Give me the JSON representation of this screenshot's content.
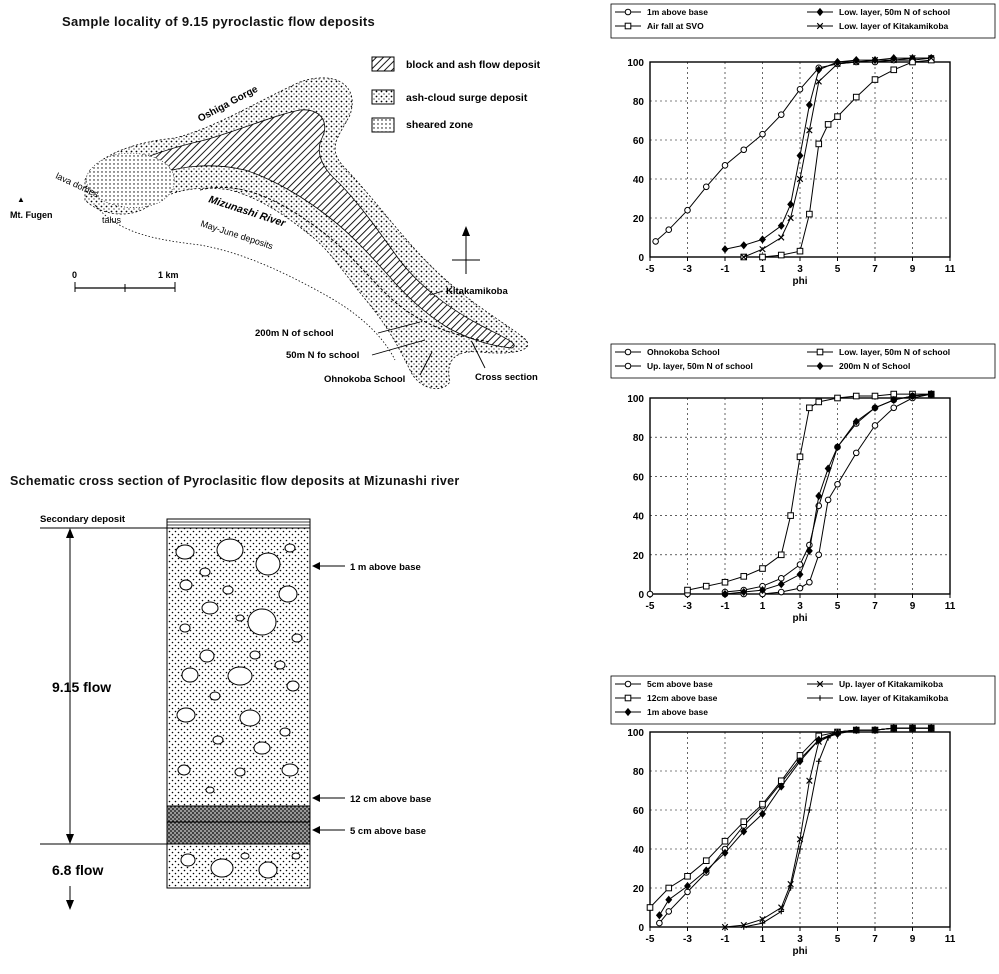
{
  "map": {
    "title": "Sample locality of  9.15 pyroclastic flow deposits",
    "legend": [
      {
        "label": "block and ash flow deposit",
        "pattern": "hatch"
      },
      {
        "label": "ash-cloud surge deposit",
        "pattern": "dots"
      },
      {
        "label": "sheared zone",
        "pattern": "fine-dots"
      }
    ],
    "labels": {
      "gorge": "Oshiga Gorge",
      "lava_domes": "lava domes",
      "talus": "talus",
      "fugen": "Mt. Fugen",
      "river": "Mizunashi River",
      "may_june": "May-June deposits",
      "kitakamikoba": "Kitakamikoba",
      "n200": "200m N of school",
      "n50": "50m N fo school",
      "ohnokoba": "Ohnokoba School",
      "cross_section": "Cross section"
    },
    "scale": {
      "zero": "0",
      "km": "1 km"
    }
  },
  "section": {
    "title": "Schematic cross section of Pyroclasitic flow deposits at Mizunashi river",
    "secondary": "Secondary deposit",
    "flow_915": "9.15 flow",
    "flow_68": "6.8 flow",
    "m1": "1 m above base",
    "cm12": "12 cm above base",
    "cm5": "5 cm above base"
  },
  "chart_data": [
    {
      "type": "line",
      "xlabel": "phi",
      "ylabel": "",
      "xlim": [
        -5,
        11
      ],
      "ylim": [
        0,
        100
      ],
      "xticks": [
        -5,
        -3,
        -1,
        1,
        3,
        5,
        7,
        9,
        11
      ],
      "yticks": [
        0,
        20,
        40,
        60,
        80,
        100
      ],
      "series": [
        {
          "name": "1m above base",
          "marker": "circle",
          "x": [
            -4.7,
            -4,
            -3,
            -2,
            -1,
            0,
            1,
            2,
            3,
            4,
            5,
            6,
            7,
            8,
            9,
            10
          ],
          "y": [
            8,
            14,
            24,
            36,
            47,
            55,
            63,
            73,
            86,
            97,
            99,
            100,
            100,
            101,
            101,
            102
          ]
        },
        {
          "name": "Low. layer, 50m N of school",
          "marker": "diamond",
          "x": [
            -1,
            0,
            1,
            2,
            2.5,
            3,
            3.5,
            4,
            5,
            6,
            7,
            8,
            9,
            10
          ],
          "y": [
            4,
            6,
            9,
            16,
            27,
            52,
            78,
            96,
            100,
            101,
            101,
            102,
            102,
            102
          ]
        },
        {
          "name": "Air fall at SVO",
          "marker": "square",
          "x": [
            0,
            1,
            2,
            3,
            3.5,
            4,
            4.5,
            5,
            6,
            7,
            8,
            9,
            10
          ],
          "y": [
            0,
            0,
            1,
            3,
            22,
            58,
            68,
            72,
            82,
            91,
            96,
            100,
            101
          ]
        },
        {
          "name": "Low. layer of Kitakamikoba",
          "marker": "x",
          "x": [
            0,
            1,
            2,
            2.5,
            3,
            3.5,
            4,
            5,
            6,
            7,
            8,
            9,
            10
          ],
          "y": [
            0,
            4,
            10,
            20,
            40,
            65,
            90,
            99,
            100,
            101,
            101,
            102,
            102
          ]
        }
      ]
    },
    {
      "type": "line",
      "xlabel": "phi",
      "ylabel": "",
      "xlim": [
        -5,
        11
      ],
      "ylim": [
        0,
        100
      ],
      "xticks": [
        -5,
        -3,
        -1,
        1,
        3,
        5,
        7,
        9,
        11
      ],
      "yticks": [
        0,
        20,
        40,
        60,
        80,
        100
      ],
      "series": [
        {
          "name": "Ohnokoba School",
          "marker": "circle",
          "x": [
            -5,
            -3,
            -1,
            0,
            1,
            2,
            3,
            3.5,
            4,
            4.5,
            5,
            6,
            7,
            8,
            9,
            10
          ],
          "y": [
            0,
            0,
            0,
            0,
            0,
            1,
            3,
            6,
            20,
            48,
            56,
            72,
            86,
            95,
            100,
            102
          ]
        },
        {
          "name": "Low. layer, 50m N of school",
          "marker": "square",
          "x": [
            -3,
            -2,
            -1,
            0,
            1,
            2,
            2.5,
            3,
            3.5,
            4,
            5,
            6,
            7,
            8,
            9,
            10
          ],
          "y": [
            2,
            4,
            6,
            9,
            13,
            20,
            40,
            70,
            95,
            98,
            100,
            101,
            101,
            102,
            102,
            102
          ]
        },
        {
          "name": "Up. layer, 50m N of school",
          "marker": "circle",
          "x": [
            -1,
            0,
            1,
            2,
            3,
            3.5,
            4,
            5,
            6,
            7,
            8,
            9,
            10
          ],
          "y": [
            1,
            2,
            4,
            8,
            15,
            25,
            45,
            75,
            87,
            95,
            99,
            101,
            102
          ]
        },
        {
          "name": "200m N of School",
          "marker": "diamond",
          "x": [
            -1,
            0,
            1,
            2,
            3,
            3.5,
            4,
            4.5,
            5,
            6,
            7,
            8,
            9,
            10
          ],
          "y": [
            0,
            1,
            2,
            5,
            10,
            22,
            50,
            64,
            75,
            88,
            95,
            99,
            101,
            102
          ]
        }
      ]
    },
    {
      "type": "line",
      "xlabel": "phi",
      "ylabel": "",
      "xlim": [
        -5,
        11
      ],
      "ylim": [
        0,
        100
      ],
      "xticks": [
        -5,
        -3,
        -1,
        1,
        3,
        5,
        7,
        9,
        11
      ],
      "yticks": [
        0,
        20,
        40,
        60,
        80,
        100
      ],
      "series": [
        {
          "name": "5cm above base",
          "marker": "circle",
          "x": [
            -4.5,
            -4,
            -3,
            -2,
            -1,
            0,
            1,
            2,
            3,
            4,
            5,
            6,
            7,
            8,
            9,
            10
          ],
          "y": [
            2,
            8,
            18,
            28,
            40,
            52,
            62,
            74,
            86,
            96,
            100,
            101,
            101,
            102,
            102,
            102
          ]
        },
        {
          "name": "12cm above base",
          "marker": "square",
          "x": [
            -5,
            -4,
            -3,
            -2,
            -1,
            0,
            1,
            2,
            3,
            4,
            5,
            6,
            7,
            8,
            9,
            10
          ],
          "y": [
            10,
            20,
            26,
            34,
            44,
            54,
            63,
            75,
            88,
            98,
            100,
            101,
            101,
            102,
            102,
            102
          ]
        },
        {
          "name": "1m above base",
          "marker": "diamond",
          "x": [
            -4.5,
            -4,
            -3,
            -2,
            -1,
            0,
            1,
            2,
            3,
            4,
            5,
            6,
            7,
            8,
            9,
            10
          ],
          "y": [
            6,
            14,
            21,
            29,
            38,
            49,
            58,
            72,
            85,
            96,
            99,
            101,
            101,
            102,
            102,
            102
          ]
        },
        {
          "name": "Up. layer of Kitakamikoba",
          "marker": "x",
          "x": [
            -1,
            0,
            1,
            2,
            2.5,
            3,
            3.5,
            4,
            5,
            6,
            7,
            8,
            9,
            10
          ],
          "y": [
            0,
            1,
            4,
            10,
            22,
            45,
            75,
            95,
            100,
            101,
            101,
            102,
            102,
            102
          ]
        },
        {
          "name": "Low. layer of Kitakamikoba",
          "marker": "plus",
          "x": [
            0,
            1,
            2,
            2.5,
            3,
            3.5,
            4,
            4.5,
            5,
            6,
            7,
            8,
            9,
            10
          ],
          "y": [
            0,
            2,
            8,
            20,
            40,
            60,
            85,
            97,
            100,
            101,
            101,
            102,
            102,
            102
          ]
        }
      ]
    }
  ]
}
